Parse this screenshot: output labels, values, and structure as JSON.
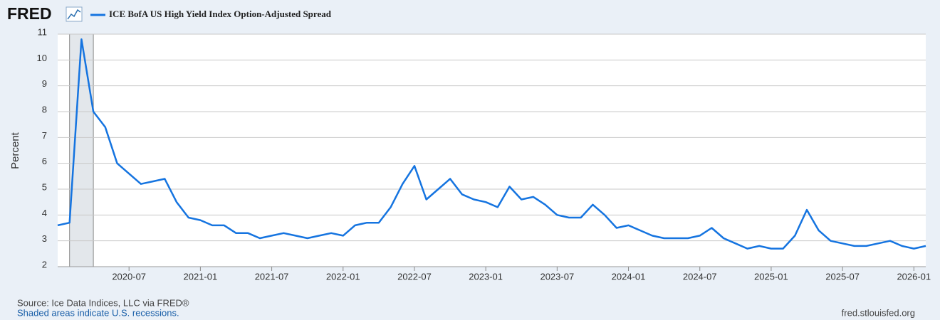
{
  "chart_data": {
    "type": "line",
    "logo": "FRED",
    "y_label": "Percent",
    "source": "Source: Ice Data Indices, LLC via FRED®",
    "note": "Shaded areas indicate U.S. recessions.",
    "url": "fred.stlouisfed.org",
    "x": [
      "2020-01",
      "2020-02",
      "2020-03",
      "2020-04",
      "2020-05",
      "2020-06",
      "2020-07",
      "2020-08",
      "2020-09",
      "2020-10",
      "2020-11",
      "2020-12",
      "2021-01",
      "2021-02",
      "2021-03",
      "2021-04",
      "2021-05",
      "2021-06",
      "2021-07",
      "2021-08",
      "2021-09",
      "2021-10",
      "2021-11",
      "2021-12",
      "2022-01",
      "2022-02",
      "2022-03",
      "2022-04",
      "2022-05",
      "2022-06",
      "2022-07",
      "2022-08",
      "2022-09",
      "2022-10",
      "2022-11",
      "2022-12",
      "2023-01",
      "2023-02",
      "2023-03",
      "2023-04",
      "2023-05",
      "2023-06",
      "2023-07",
      "2023-08",
      "2023-09",
      "2023-10",
      "2023-11",
      "2023-12",
      "2024-01",
      "2024-02",
      "2024-03",
      "2024-04",
      "2024-05",
      "2024-06",
      "2024-07",
      "2024-08",
      "2024-09",
      "2024-10",
      "2024-11",
      "2024-12",
      "2025-01",
      "2025-02",
      "2025-03",
      "2025-04",
      "2025-05",
      "2025-06",
      "2025-07",
      "2025-08",
      "2025-09",
      "2025-10",
      "2025-11",
      "2025-12",
      "2026-01",
      "2026-02"
    ],
    "series": [
      {
        "name": "ICE BofA US High Yield Index Option-Adjusted Spread",
        "color": "#1574e0",
        "values": [
          3.6,
          3.7,
          10.8,
          8.0,
          7.4,
          6.0,
          5.6,
          5.2,
          5.3,
          5.4,
          4.5,
          3.9,
          3.8,
          3.6,
          3.6,
          3.3,
          3.3,
          3.1,
          3.2,
          3.3,
          3.2,
          3.1,
          3.2,
          3.3,
          3.2,
          3.6,
          3.7,
          3.7,
          4.3,
          5.2,
          5.9,
          4.6,
          5.0,
          5.4,
          4.8,
          4.6,
          4.5,
          4.3,
          5.1,
          4.6,
          4.7,
          4.4,
          4.0,
          3.9,
          3.9,
          4.4,
          4.0,
          3.5,
          3.6,
          3.4,
          3.2,
          3.1,
          3.1,
          3.1,
          3.2,
          3.5,
          3.1,
          2.9,
          2.7,
          2.8,
          2.7,
          2.7,
          3.2,
          4.2,
          3.4,
          3.0,
          2.9,
          2.8,
          2.8,
          2.9,
          3.0,
          2.8,
          2.7,
          2.8
        ]
      }
    ],
    "recessions": [
      {
        "start": "2020-02",
        "end": "2020-04"
      }
    ],
    "xlim": [
      "2020-01",
      "2026-02"
    ],
    "xticks": [
      "2020-07",
      "2021-01",
      "2021-07",
      "2022-01",
      "2022-07",
      "2023-01",
      "2023-07",
      "2024-01",
      "2024-07",
      "2025-01",
      "2025-07",
      "2026-01"
    ],
    "ylim": [
      2,
      11
    ],
    "yticks": [
      2,
      3,
      4,
      5,
      6,
      7,
      8,
      9,
      10,
      11
    ],
    "grid": true
  }
}
